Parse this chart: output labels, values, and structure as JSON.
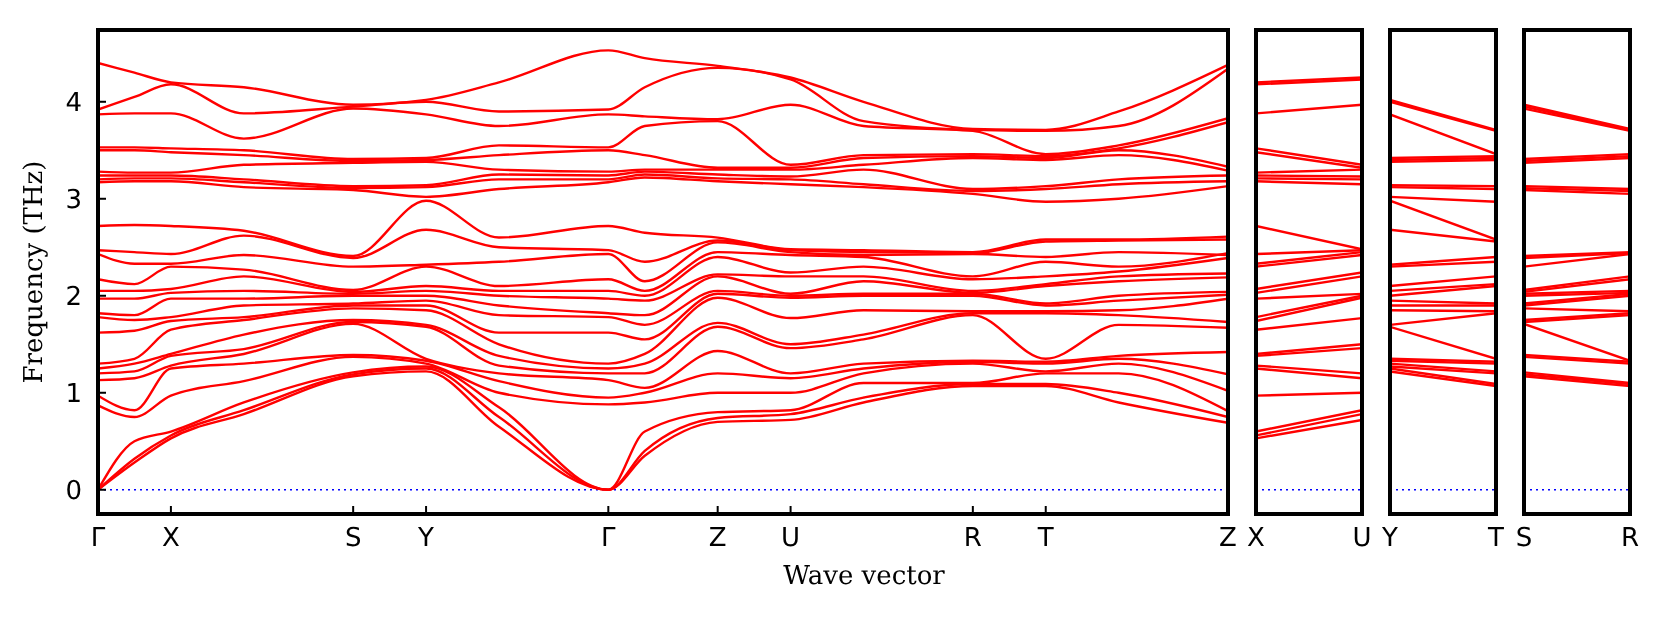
{
  "chart_data": [
    {
      "type": "line",
      "xlabel": "Wave vector",
      "ylabel": "Frequency (THz)",
      "categories": [
        "Γ",
        null,
        "X",
        null,
        null,
        null,
        null,
        "S",
        null,
        "Y",
        null,
        null,
        null,
        null,
        "Γ",
        null,
        null,
        "Z",
        null,
        "U",
        null,
        null,
        null,
        null,
        "R",
        null,
        "T",
        null,
        null,
        null,
        null,
        "Z"
      ],
      "ylim": [
        -0.25,
        4.74
      ],
      "yticks": [
        0,
        1,
        2,
        3,
        4
      ],
      "ref_lines": [
        {
          "axis": "y",
          "value": 0,
          "color": "#0000ff",
          "line_style": "dotted"
        }
      ],
      "series": [
        {
          "color": "#ff0000",
          "values": [
            0,
            0.28,
            0.53,
            null,
            0.78,
            null,
            null,
            1.17,
            null,
            1.22,
            null,
            0.65,
            null,
            null,
            0,
            0.35,
            null,
            0.7,
            null,
            0.72,
            null,
            0.9,
            null,
            null,
            1.07,
            null,
            1.07,
            null,
            0.9,
            null,
            null,
            0.69
          ]
        },
        {
          "color": "#ff0000",
          "values": [
            0,
            0.32,
            0.56,
            null,
            0.82,
            null,
            null,
            1.19,
            null,
            1.25,
            null,
            0.75,
            null,
            null,
            0,
            0.4,
            null,
            0.74,
            null,
            0.78,
            null,
            0.95,
            null,
            null,
            1.09,
            null,
            1.09,
            null,
            1.0,
            null,
            null,
            0.75
          ]
        },
        {
          "color": "#ff0000",
          "values": [
            0,
            0.5,
            0.6,
            null,
            0.9,
            null,
            null,
            1.21,
            null,
            1.27,
            null,
            0.85,
            null,
            null,
            0,
            0.6,
            null,
            0.8,
            null,
            0.82,
            null,
            1.1,
            null,
            null,
            1.1,
            null,
            1.2,
            null,
            1.2,
            null,
            null,
            0.81
          ]
        },
        {
          "color": "#ff0000",
          "values": [
            0.87,
            0.75,
            0.97,
            null,
            1.12,
            null,
            null,
            1.37,
            null,
            1.3,
            null,
            1.0,
            null,
            null,
            0.88,
            0.9,
            null,
            1.0,
            null,
            1.0,
            null,
            1.2,
            null,
            null,
            1.3,
            null,
            1.22,
            null,
            1.3,
            null,
            null,
            1.02
          ]
        },
        {
          "color": "#ff0000",
          "values": [
            0.97,
            0.82,
            1.25,
            null,
            1.3,
            null,
            null,
            1.39,
            null,
            1.33,
            null,
            1.12,
            null,
            null,
            0.95,
            1.0,
            null,
            1.2,
            null,
            1.15,
            null,
            1.25,
            null,
            null,
            1.32,
            null,
            1.3,
            null,
            1.35,
            null,
            null,
            1.19
          ]
        },
        {
          "color": "#ff0000",
          "values": [
            1.13,
            1.15,
            1.28,
            null,
            1.4,
            null,
            null,
            1.71,
            null,
            1.35,
            null,
            1.2,
            null,
            null,
            1.13,
            1.05,
            null,
            1.43,
            null,
            1.2,
            null,
            1.3,
            null,
            null,
            1.33,
            null,
            1.32,
            null,
            1.38,
            null,
            null,
            1.42
          ]
        },
        {
          "color": "#ff0000",
          "values": [
            1.2,
            1.22,
            1.38,
            null,
            1.45,
            null,
            null,
            1.73,
            null,
            1.68,
            null,
            1.28,
            null,
            null,
            1.2,
            1.2,
            null,
            1.68,
            null,
            1.46,
            null,
            1.55,
            null,
            null,
            1.8,
            null,
            1.35,
            null,
            1.7,
            null,
            null,
            1.67
          ]
        },
        {
          "color": "#ff0000",
          "values": [
            1.25,
            1.3,
            1.4,
            null,
            1.6,
            null,
            null,
            1.75,
            null,
            1.7,
            null,
            1.38,
            null,
            null,
            1.25,
            1.3,
            null,
            1.72,
            null,
            1.5,
            null,
            1.6,
            null,
            null,
            1.82,
            null,
            1.82,
            null,
            1.8,
            null,
            null,
            1.73
          ]
        },
        {
          "color": "#ff0000",
          "values": [
            1.3,
            1.35,
            1.65,
            null,
            1.75,
            null,
            null,
            1.87,
            null,
            1.85,
            null,
            1.5,
            null,
            null,
            1.3,
            1.4,
            null,
            1.98,
            null,
            1.77,
            null,
            1.85,
            null,
            null,
            1.84,
            null,
            1.84,
            null,
            1.85,
            null,
            null,
            1.97
          ]
        },
        {
          "color": "#ff0000",
          "values": [
            1.62,
            1.64,
            1.74,
            null,
            1.78,
            null,
            null,
            1.9,
            null,
            1.9,
            null,
            1.62,
            null,
            null,
            1.62,
            1.55,
            null,
            2.02,
            null,
            1.98,
            null,
            2.0,
            null,
            null,
            2.0,
            null,
            1.9,
            null,
            1.95,
            null,
            null,
            2.01
          ]
        },
        {
          "color": "#ff0000",
          "values": [
            1.78,
            1.75,
            1.78,
            null,
            1.9,
            null,
            null,
            1.92,
            null,
            1.95,
            null,
            1.8,
            null,
            null,
            1.78,
            1.7,
            null,
            2.05,
            null,
            2.0,
            null,
            2.02,
            null,
            null,
            2.02,
            null,
            1.92,
            null,
            2.0,
            null,
            null,
            2.04
          ]
        },
        {
          "color": "#ff0000",
          "values": [
            1.82,
            1.8,
            1.97,
            null,
            1.97,
            null,
            null,
            2.0,
            null,
            2.0,
            null,
            1.9,
            null,
            null,
            1.82,
            1.8,
            null,
            2.2,
            null,
            2.02,
            null,
            2.15,
            null,
            null,
            2.03,
            null,
            2.1,
            null,
            2.15,
            null,
            null,
            2.19
          ]
        },
        {
          "color": "#ff0000",
          "values": [
            1.97,
            1.97,
            2.03,
            null,
            2.05,
            null,
            null,
            2.02,
            null,
            2.05,
            null,
            2.0,
            null,
            null,
            1.97,
            1.95,
            null,
            2.22,
            null,
            2.2,
            null,
            2.2,
            null,
            null,
            2.05,
            null,
            2.12,
            null,
            2.2,
            null,
            null,
            2.23
          ]
        },
        {
          "color": "#ff0000",
          "values": [
            2.05,
            2.05,
            2.07,
            null,
            2.2,
            null,
            null,
            2.04,
            null,
            2.1,
            null,
            2.05,
            null,
            null,
            2.05,
            2.0,
            null,
            2.4,
            null,
            2.24,
            null,
            2.3,
            null,
            null,
            2.17,
            null,
            2.2,
            null,
            2.25,
            null,
            null,
            2.39
          ]
        },
        {
          "color": "#ff0000",
          "values": [
            2.17,
            2.12,
            2.3,
            null,
            2.27,
            null,
            null,
            2.06,
            null,
            2.3,
            null,
            2.1,
            null,
            null,
            2.17,
            2.05,
            null,
            2.45,
            null,
            2.42,
            null,
            2.4,
            null,
            null,
            2.2,
            null,
            2.35,
            null,
            2.3,
            null,
            null,
            2.44
          ]
        },
        {
          "color": "#ff0000",
          "values": [
            2.43,
            2.33,
            2.33,
            null,
            2.42,
            null,
            null,
            2.3,
            null,
            2.32,
            null,
            2.35,
            null,
            null,
            2.43,
            2.15,
            null,
            2.55,
            null,
            2.45,
            null,
            2.42,
            null,
            null,
            2.43,
            null,
            2.4,
            null,
            2.45,
            null,
            null,
            2.42
          ]
        },
        {
          "color": "#ff0000",
          "values": [
            2.47,
            2.45,
            2.43,
            null,
            2.62,
            null,
            null,
            2.39,
            null,
            2.68,
            null,
            2.5,
            null,
            null,
            2.47,
            2.35,
            null,
            2.57,
            null,
            2.47,
            null,
            2.45,
            null,
            null,
            2.44,
            null,
            2.56,
            null,
            2.57,
            null,
            null,
            2.58
          ]
        },
        {
          "color": "#ff0000",
          "values": [
            2.72,
            2.73,
            2.72,
            null,
            2.67,
            null,
            null,
            2.41,
            null,
            2.98,
            null,
            2.6,
            null,
            null,
            2.72,
            2.65,
            null,
            2.6,
            null,
            2.48,
            null,
            2.47,
            null,
            null,
            2.45,
            null,
            2.58,
            null,
            2.58,
            null,
            null,
            2.61
          ]
        },
        {
          "color": "#ff0000",
          "values": [
            3.17,
            3.18,
            3.18,
            null,
            3.12,
            null,
            null,
            3.09,
            null,
            3.02,
            null,
            3.1,
            null,
            null,
            3.17,
            3.22,
            null,
            3.18,
            null,
            3.15,
            null,
            3.12,
            null,
            null,
            3.05,
            null,
            2.97,
            null,
            3.0,
            null,
            null,
            3.13
          ]
        },
        {
          "color": "#ff0000",
          "values": [
            3.2,
            3.21,
            3.21,
            null,
            3.17,
            null,
            null,
            3.11,
            null,
            3.12,
            null,
            3.2,
            null,
            null,
            3.2,
            3.25,
            null,
            3.21,
            null,
            3.2,
            null,
            3.15,
            null,
            null,
            3.08,
            null,
            3.1,
            null,
            3.15,
            null,
            null,
            3.18
          ]
        },
        {
          "color": "#ff0000",
          "values": [
            3.24,
            3.24,
            3.24,
            null,
            3.2,
            null,
            null,
            3.13,
            null,
            3.14,
            null,
            3.25,
            null,
            null,
            3.24,
            3.28,
            null,
            3.25,
            null,
            3.23,
            null,
            3.3,
            null,
            null,
            3.1,
            null,
            3.13,
            null,
            3.2,
            null,
            null,
            3.24
          ]
        },
        {
          "color": "#ff0000",
          "values": [
            3.28,
            3.27,
            3.27,
            null,
            3.35,
            null,
            null,
            3.37,
            null,
            3.38,
            null,
            3.3,
            null,
            null,
            3.28,
            3.3,
            null,
            3.3,
            null,
            3.3,
            null,
            3.35,
            null,
            null,
            3.42,
            null,
            3.4,
            null,
            3.45,
            null,
            null,
            3.29
          ]
        },
        {
          "color": "#ff0000",
          "values": [
            3.5,
            3.5,
            3.48,
            null,
            3.45,
            null,
            null,
            3.39,
            null,
            3.4,
            null,
            3.45,
            null,
            null,
            3.5,
            3.45,
            null,
            3.32,
            null,
            3.32,
            null,
            3.42,
            null,
            null,
            3.44,
            null,
            3.42,
            null,
            3.5,
            null,
            null,
            3.33
          ]
        },
        {
          "color": "#ff0000",
          "values": [
            3.53,
            3.53,
            3.52,
            null,
            3.5,
            null,
            null,
            3.41,
            null,
            3.42,
            null,
            3.55,
            null,
            null,
            3.53,
            3.75,
            null,
            3.8,
            null,
            3.35,
            null,
            3.45,
            null,
            null,
            3.46,
            null,
            3.44,
            null,
            3.52,
            null,
            null,
            3.79
          ]
        },
        {
          "color": "#ff0000",
          "values": [
            3.87,
            3.88,
            3.88,
            null,
            3.62,
            null,
            null,
            3.93,
            null,
            3.87,
            null,
            3.75,
            null,
            null,
            3.87,
            3.85,
            null,
            3.82,
            null,
            3.97,
            null,
            3.75,
            null,
            null,
            3.7,
            null,
            3.46,
            null,
            3.55,
            null,
            null,
            3.83
          ]
        },
        {
          "color": "#ff0000",
          "values": [
            3.92,
            4.05,
            4.18,
            null,
            3.88,
            null,
            null,
            3.95,
            null,
            4.0,
            null,
            3.9,
            null,
            null,
            3.92,
            4.15,
            null,
            4.35,
            null,
            4.23,
            null,
            3.8,
            null,
            null,
            3.71,
            null,
            3.7,
            null,
            3.75,
            null,
            null,
            4.34
          ]
        },
        {
          "color": "#ff0000",
          "values": [
            4.4,
            4.3,
            4.2,
            null,
            4.15,
            null,
            null,
            3.97,
            null,
            4.02,
            null,
            4.2,
            null,
            null,
            4.53,
            4.45,
            null,
            4.37,
            null,
            4.25,
            null,
            4.0,
            null,
            null,
            3.72,
            null,
            3.71,
            null,
            3.9,
            null,
            null,
            4.38
          ]
        }
      ]
    },
    {
      "type": "line",
      "tick_labels": "x",
      "categories": [
        "X",
        "U"
      ],
      "ylim": [
        -0.25,
        4.74
      ],
      "ref_lines": [
        {
          "axis": "y",
          "value": 0,
          "color": "#0000ff",
          "line_style": "dotted"
        }
      ],
      "series": [
        {
          "color": "#ff0000",
          "values": [
            0.53,
            0.72
          ]
        },
        {
          "color": "#ff0000",
          "values": [
            0.56,
            0.78
          ]
        },
        {
          "color": "#ff0000",
          "values": [
            0.6,
            0.82
          ]
        },
        {
          "color": "#ff0000",
          "values": [
            0.97,
            1.0
          ]
        },
        {
          "color": "#ff0000",
          "values": [
            1.25,
            1.15
          ]
        },
        {
          "color": "#ff0000",
          "values": [
            1.28,
            1.2
          ]
        },
        {
          "color": "#ff0000",
          "values": [
            1.38,
            1.46
          ]
        },
        {
          "color": "#ff0000",
          "values": [
            1.4,
            1.5
          ]
        },
        {
          "color": "#ff0000",
          "values": [
            1.65,
            1.77
          ]
        },
        {
          "color": "#ff0000",
          "values": [
            1.74,
            1.98
          ]
        },
        {
          "color": "#ff0000",
          "values": [
            1.78,
            2.0
          ]
        },
        {
          "color": "#ff0000",
          "values": [
            1.97,
            2.02
          ]
        },
        {
          "color": "#ff0000",
          "values": [
            2.03,
            2.2
          ]
        },
        {
          "color": "#ff0000",
          "values": [
            2.07,
            2.24
          ]
        },
        {
          "color": "#ff0000",
          "values": [
            2.3,
            2.42
          ]
        },
        {
          "color": "#ff0000",
          "values": [
            2.33,
            2.45
          ]
        },
        {
          "color": "#ff0000",
          "values": [
            2.43,
            2.47
          ]
        },
        {
          "color": "#ff0000",
          "values": [
            2.72,
            2.48
          ]
        },
        {
          "color": "#ff0000",
          "values": [
            3.18,
            3.15
          ]
        },
        {
          "color": "#ff0000",
          "values": [
            3.21,
            3.2
          ]
        },
        {
          "color": "#ff0000",
          "values": [
            3.24,
            3.23
          ]
        },
        {
          "color": "#ff0000",
          "values": [
            3.27,
            3.3
          ]
        },
        {
          "color": "#ff0000",
          "values": [
            3.48,
            3.32
          ]
        },
        {
          "color": "#ff0000",
          "values": [
            3.52,
            3.35
          ]
        },
        {
          "color": "#ff0000",
          "values": [
            3.88,
            3.97
          ]
        },
        {
          "color": "#ff0000",
          "values": [
            4.18,
            4.23
          ]
        },
        {
          "color": "#ff0000",
          "values": [
            4.2,
            4.25
          ]
        }
      ]
    },
    {
      "type": "line",
      "tick_labels": "x",
      "categories": [
        "Y",
        "T"
      ],
      "ylim": [
        -0.25,
        4.74
      ],
      "ref_lines": [
        {
          "axis": "y",
          "value": 0,
          "color": "#0000ff",
          "line_style": "dotted"
        }
      ],
      "series": [
        {
          "color": "#ff0000",
          "values": [
            1.22,
            1.07
          ]
        },
        {
          "color": "#ff0000",
          "values": [
            1.25,
            1.09
          ]
        },
        {
          "color": "#ff0000",
          "values": [
            1.27,
            1.2
          ]
        },
        {
          "color": "#ff0000",
          "values": [
            1.3,
            1.22
          ]
        },
        {
          "color": "#ff0000",
          "values": [
            1.33,
            1.3
          ]
        },
        {
          "color": "#ff0000",
          "values": [
            1.35,
            1.32
          ]
        },
        {
          "color": "#ff0000",
          "values": [
            1.68,
            1.35
          ]
        },
        {
          "color": "#ff0000",
          "values": [
            1.7,
            1.82
          ]
        },
        {
          "color": "#ff0000",
          "values": [
            1.85,
            1.84
          ]
        },
        {
          "color": "#ff0000",
          "values": [
            1.9,
            1.9
          ]
        },
        {
          "color": "#ff0000",
          "values": [
            1.95,
            1.92
          ]
        },
        {
          "color": "#ff0000",
          "values": [
            2.0,
            2.1
          ]
        },
        {
          "color": "#ff0000",
          "values": [
            2.05,
            2.12
          ]
        },
        {
          "color": "#ff0000",
          "values": [
            2.1,
            2.2
          ]
        },
        {
          "color": "#ff0000",
          "values": [
            2.3,
            2.35
          ]
        },
        {
          "color": "#ff0000",
          "values": [
            2.32,
            2.4
          ]
        },
        {
          "color": "#ff0000",
          "values": [
            2.68,
            2.56
          ]
        },
        {
          "color": "#ff0000",
          "values": [
            2.98,
            2.58
          ]
        },
        {
          "color": "#ff0000",
          "values": [
            3.02,
            2.97
          ]
        },
        {
          "color": "#ff0000",
          "values": [
            3.12,
            3.1
          ]
        },
        {
          "color": "#ff0000",
          "values": [
            3.14,
            3.13
          ]
        },
        {
          "color": "#ff0000",
          "values": [
            3.38,
            3.4
          ]
        },
        {
          "color": "#ff0000",
          "values": [
            3.4,
            3.42
          ]
        },
        {
          "color": "#ff0000",
          "values": [
            3.42,
            3.44
          ]
        },
        {
          "color": "#ff0000",
          "values": [
            3.87,
            3.46
          ]
        },
        {
          "color": "#ff0000",
          "values": [
            4.0,
            3.7
          ]
        },
        {
          "color": "#ff0000",
          "values": [
            4.02,
            3.71
          ]
        }
      ]
    },
    {
      "type": "line",
      "tick_labels": "x",
      "categories": [
        "S",
        "R"
      ],
      "ylim": [
        -0.25,
        4.74
      ],
      "ref_lines": [
        {
          "axis": "y",
          "value": 0,
          "color": "#0000ff",
          "line_style": "dotted"
        }
      ],
      "series": [
        {
          "color": "#ff0000",
          "values": [
            1.17,
            1.07
          ]
        },
        {
          "color": "#ff0000",
          "values": [
            1.19,
            1.09
          ]
        },
        {
          "color": "#ff0000",
          "values": [
            1.21,
            1.1
          ]
        },
        {
          "color": "#ff0000",
          "values": [
            1.37,
            1.3
          ]
        },
        {
          "color": "#ff0000",
          "values": [
            1.39,
            1.32
          ]
        },
        {
          "color": "#ff0000",
          "values": [
            1.71,
            1.33
          ]
        },
        {
          "color": "#ff0000",
          "values": [
            1.73,
            1.8
          ]
        },
        {
          "color": "#ff0000",
          "values": [
            1.75,
            1.82
          ]
        },
        {
          "color": "#ff0000",
          "values": [
            1.87,
            1.84
          ]
        },
        {
          "color": "#ff0000",
          "values": [
            1.9,
            2.0
          ]
        },
        {
          "color": "#ff0000",
          "values": [
            1.92,
            2.02
          ]
        },
        {
          "color": "#ff0000",
          "values": [
            2.0,
            2.03
          ]
        },
        {
          "color": "#ff0000",
          "values": [
            2.02,
            2.05
          ]
        },
        {
          "color": "#ff0000",
          "values": [
            2.04,
            2.17
          ]
        },
        {
          "color": "#ff0000",
          "values": [
            2.06,
            2.2
          ]
        },
        {
          "color": "#ff0000",
          "values": [
            2.3,
            2.43
          ]
        },
        {
          "color": "#ff0000",
          "values": [
            2.39,
            2.44
          ]
        },
        {
          "color": "#ff0000",
          "values": [
            2.41,
            2.45
          ]
        },
        {
          "color": "#ff0000",
          "values": [
            3.09,
            3.05
          ]
        },
        {
          "color": "#ff0000",
          "values": [
            3.11,
            3.08
          ]
        },
        {
          "color": "#ff0000",
          "values": [
            3.13,
            3.1
          ]
        },
        {
          "color": "#ff0000",
          "values": [
            3.37,
            3.42
          ]
        },
        {
          "color": "#ff0000",
          "values": [
            3.39,
            3.44
          ]
        },
        {
          "color": "#ff0000",
          "values": [
            3.41,
            3.46
          ]
        },
        {
          "color": "#ff0000",
          "values": [
            3.93,
            3.7
          ]
        },
        {
          "color": "#ff0000",
          "values": [
            3.95,
            3.71
          ]
        },
        {
          "color": "#ff0000",
          "values": [
            3.97,
            3.72
          ]
        }
      ]
    }
  ]
}
